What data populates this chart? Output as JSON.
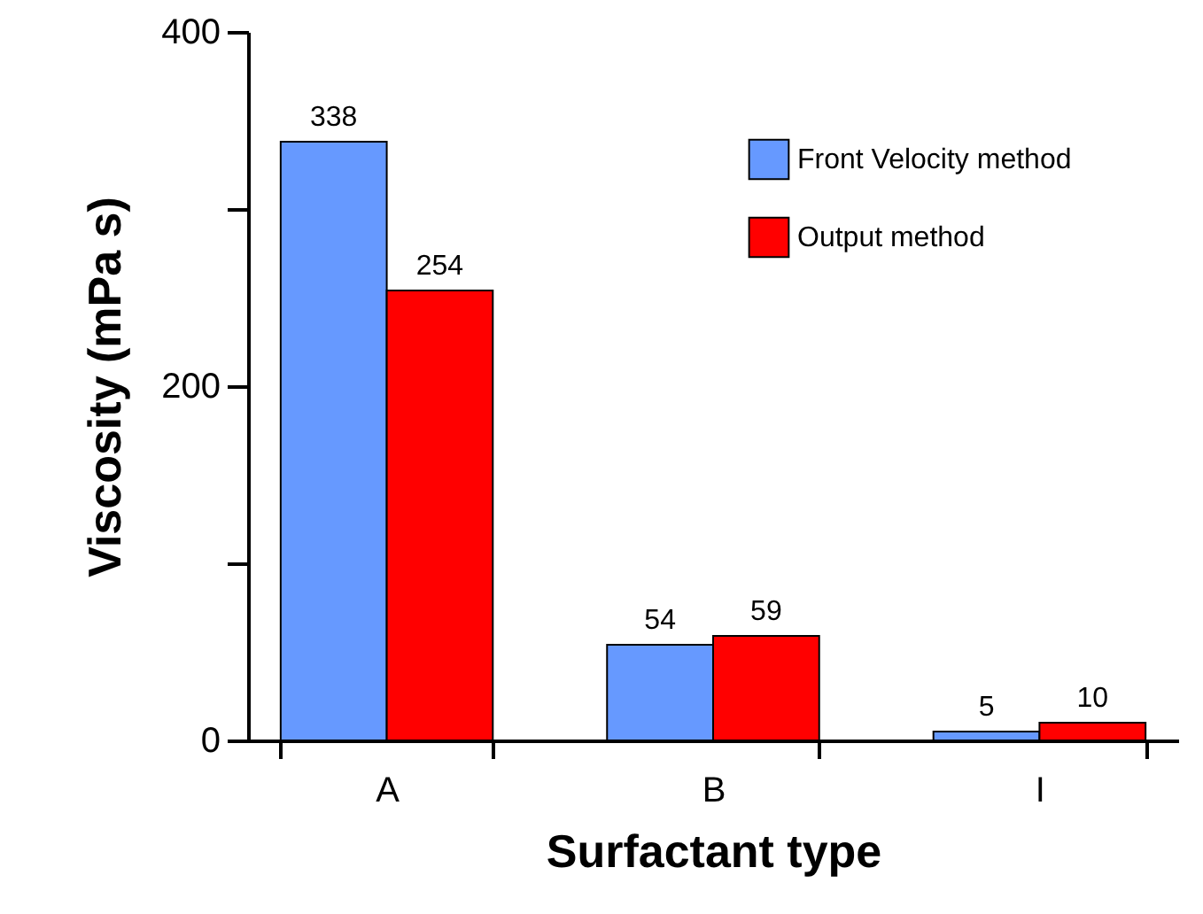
{
  "chart_data": {
    "type": "bar",
    "xlabel": "Surfactant type",
    "ylabel": "Viscosity (mPa s)",
    "categories": [
      "A",
      "B",
      "I"
    ],
    "series": [
      {
        "name": "Front Velocity method",
        "color": "#6699ff",
        "values": [
          338,
          54,
          5
        ]
      },
      {
        "name": "Output method",
        "color": "#ff0000",
        "values": [
          254,
          59,
          10
        ]
      }
    ],
    "ylim": [
      0,
      400
    ],
    "yticks": [
      0,
      {
        "value": 100,
        "label": null
      },
      200,
      {
        "value": 300,
        "label": null
      },
      400
    ],
    "data_labels": true,
    "legend": "top right",
    "grid": false
  }
}
